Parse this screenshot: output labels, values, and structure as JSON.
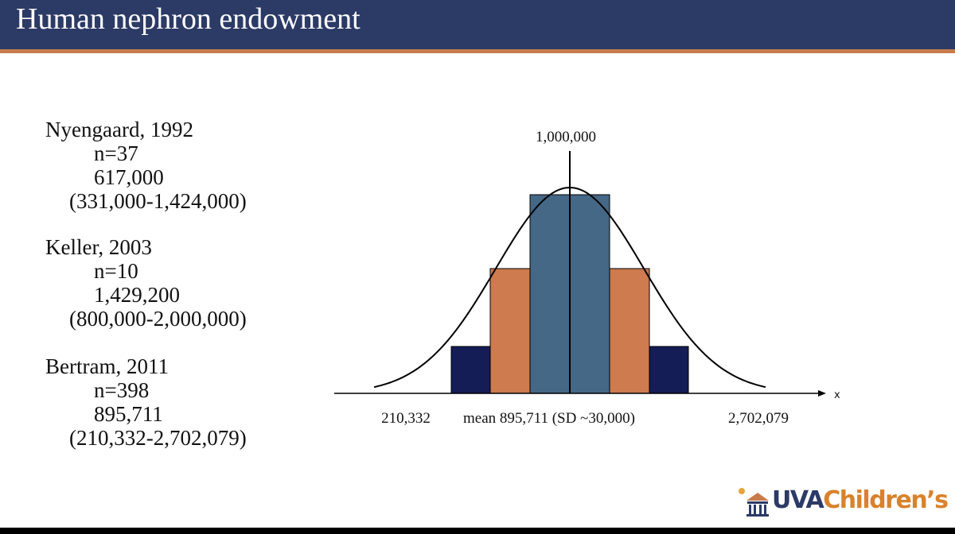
{
  "header": {
    "title": "Human nephron endowment"
  },
  "studies": [
    {
      "name": "Nyengaard, 1992",
      "n": "n=37",
      "estimate": "617,000",
      "range": "(331,000-1,424,000)"
    },
    {
      "name": "Keller, 2003",
      "n": "n=10",
      "estimate": "1,429,200",
      "range": "(800,000-2,000,000)"
    },
    {
      "name": "Bertram, 2011",
      "n": "n=398",
      "estimate": "895,711",
      "range": "(210,332-2,702,079)"
    }
  ],
  "diagram": {
    "peak_label": "1,000,000",
    "low_label": "210,332",
    "mean_label": "mean 895,711 (SD ~30,000)",
    "high_label": "2,702,079",
    "axis_label": "x"
  },
  "logo": {
    "first": "UVA",
    "second": "Children’s"
  }
}
